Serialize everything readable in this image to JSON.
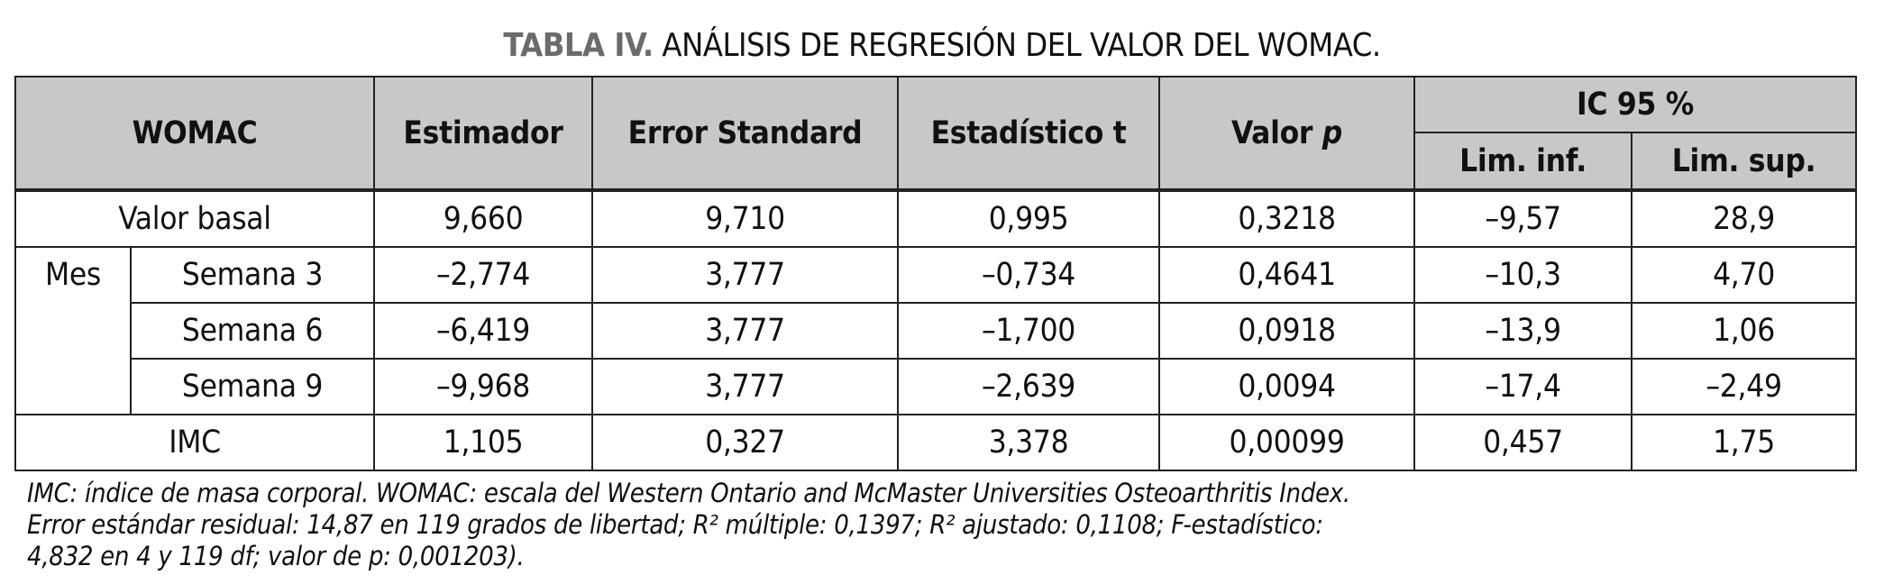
{
  "title": {
    "label": "TABLA IV.",
    "text": "ANÁLISIS DE REGRESIÓN DEL VALOR DEL WOMAC."
  },
  "header": {
    "womac": "WOMAC",
    "estimador": "Estimador",
    "error": "Error Standard",
    "estadistico": "Estadístico t",
    "valor_p": "Valor",
    "valor_p_italic": "p",
    "ic": "IC 95 %",
    "lim_inf": "Lim. inf.",
    "lim_sup": "Lim. sup."
  },
  "rows": [
    {
      "label": "Valor basal",
      "values": [
        "9,660",
        "9,710",
        "0,995",
        "0,3218",
        "–9,57",
        "28,9"
      ]
    },
    {
      "group": "Mes",
      "label": "Semana 3",
      "values": [
        "–2,774",
        "3,777",
        "–0,734",
        "0,4641",
        "–10,3",
        "4,70"
      ]
    },
    {
      "label": "Semana 6",
      "values": [
        "–6,419",
        "3,777",
        "–1,700",
        "0,0918",
        "–13,9",
        "1,06"
      ]
    },
    {
      "label": "Semana 9",
      "values": [
        "–9,968",
        "3,777",
        "–2,639",
        "0,0094",
        "–17,4",
        "–2,49"
      ]
    },
    {
      "label": "IMC",
      "values": [
        "1,105",
        "0,327",
        "3,378",
        "0,00099",
        "0,457",
        "1,75"
      ]
    }
  ],
  "footnote": [
    "IMC: índice de masa corporal. WOMAC: escala del Western Ontario and McMaster Universities Osteoarthritis Index.",
    "Error estándar residual: 14,87 en 119 grados de libertad; R² múltiple: 0,1397; R² ajustado: 0,1108; F-estadístico:",
    "4,832 en 4 y 119 df; valor de p: 0,001203)."
  ]
}
